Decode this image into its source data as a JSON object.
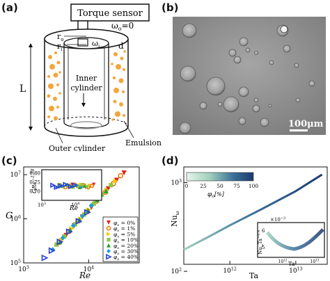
{
  "panels": {
    "a": {
      "label": "(a)",
      "torque_sensor": "Torque sensor",
      "omega_o": "ω",
      "omega_o_sub": "o",
      "omega_o_eq": "=0",
      "omega_i": "ω",
      "omega_i_sub": "i",
      "r_o": "r",
      "r_o_sub": "o",
      "r_i": "r",
      "r_i_sub": "i",
      "d": "d",
      "L": "L",
      "inner_cylinder": [
        "Inner",
        "cylinder"
      ],
      "outer_cylinder": "Outer cylinder",
      "emulsion": "Emulsion"
    },
    "b": {
      "label": "(b)",
      "scale_bar": "100μm"
    },
    "c": {
      "label": "(c)",
      "ylabel": "G",
      "xlabel": "Re",
      "inset_ylabel": "GRe",
      "inset_ylabel_exp": "−1.58",
      "inset_xlabel": "Re"
    },
    "d": {
      "label": "(d)",
      "ylabel": "Nu",
      "ylabel_sub": "ω",
      "xlabel": "Ta",
      "colorbar_label": "φ",
      "colorbar_label_sub": "o",
      "colorbar_label_unit": "[%]",
      "colorbar_ticks": [
        "0",
        "25",
        "50",
        "75",
        "100"
      ],
      "inset_ylabel": "Nu",
      "inset_ylabel_sub": "ω",
      "inset_ylabel_rest": "Ta",
      "inset_ylabel_exp": "−0.4",
      "inset_xlabel": "Ta",
      "inset_scale": "×10",
      "inset_scale_exp": "−3"
    }
  },
  "chart_data": [
    {
      "type": "scatter",
      "panel": "c",
      "xlabel": "Re",
      "ylabel": "G",
      "x_scale": "log",
      "y_scale": "log",
      "xlim": [
        1000,
        60000
      ],
      "ylim": [
        100000,
        15000000
      ],
      "x_ticks": [
        "10",
        "10"
      ],
      "x_ticks_exp": [
        "3",
        "4"
      ],
      "y_ticks": [
        "10",
        "10",
        "10"
      ],
      "y_ticks_exp": [
        "5",
        "6",
        "7"
      ],
      "legend_position": "bottom-right",
      "series": [
        {
          "name": "0%",
          "symbol": "▼",
          "color": "#e8201a",
          "x": [
            4500,
            6000,
            8000,
            11000,
            15000,
            20000,
            27000,
            35000
          ],
          "y": [
            420000,
            700000,
            1100000,
            1800000,
            3000000,
            4800000,
            7500000,
            11000000
          ]
        },
        {
          "name": "1%",
          "symbol": "○",
          "color": "#f07a10",
          "x": [
            3500,
            5000,
            7000,
            9500,
            13000,
            18000,
            24000,
            31000
          ],
          "y": [
            290000,
            520000,
            900000,
            1450000,
            2500000,
            4000000,
            6300000,
            9500000
          ]
        },
        {
          "name": "5%",
          "symbol": "▶",
          "color": "#f5c800",
          "x": [
            3800,
            5500,
            7500,
            10000,
            14000,
            19000,
            26000
          ],
          "y": [
            330000,
            600000,
            1000000,
            1600000,
            2800000,
            4500000,
            7200000
          ]
        },
        {
          "name": "10%",
          "symbol": "■",
          "color": "#8cc63f",
          "x": [
            3200,
            4200,
            6200,
            8500,
            12000,
            16000,
            22000
          ],
          "y": [
            260000,
            400000,
            750000,
            1250000,
            2200000,
            3500000,
            5800000
          ]
        },
        {
          "name": "20%",
          "symbol": "▲",
          "color": "#2ca02c",
          "x": [
            3600,
            5200,
            7200,
            9800,
            13500,
            18500
          ],
          "y": [
            300000,
            560000,
            950000,
            1550000,
            2700000,
            4300000
          ]
        },
        {
          "name": "30%",
          "symbol": "◆",
          "color": "#1f9fd0",
          "x": [
            2800,
            4000,
            5800,
            8000,
            11000,
            15000
          ],
          "y": [
            200000,
            370000,
            700000,
            1150000,
            2000000,
            3300000
          ]
        },
        {
          "name": "40%",
          "symbol": "▷",
          "color": "#2a3fd8",
          "x": [
            2100,
            2700,
            3600,
            5000,
            7000,
            9500
          ],
          "y": [
            130000,
            190000,
            300000,
            510000,
            880000,
            1400000
          ]
        }
      ],
      "inset": {
        "ylabel": "GRe^−1.58",
        "xlabel": "Re",
        "ylim": [
          0.65,
          0.82
        ],
        "y_ticks": [
          "0.80",
          "0.75",
          "0.70"
        ],
        "x_ticks": [
          "10",
          "10"
        ],
        "x_ticks_exp": [
          "3",
          "4"
        ],
        "approx_value": 0.73
      }
    },
    {
      "type": "line",
      "panel": "d",
      "xlabel": "Ta",
      "ylabel": "Nuω",
      "x_scale": "log",
      "y_scale": "log",
      "xlim": [
        200000000000,
        30000000000000
      ],
      "ylim": [
        120,
        1500
      ],
      "x_ticks": [
        "10",
        "10"
      ],
      "x_ticks_exp": [
        "12",
        "13"
      ],
      "y_ticks": [
        "10",
        "10"
      ],
      "y_ticks_exp": [
        "2",
        "3"
      ],
      "colorbar": {
        "label": "φo [%]",
        "range": [
          0,
          100
        ],
        "colors": [
          "#e6f4ec",
          "#9fd0bb",
          "#3b6f9a",
          "#1c3a6e"
        ]
      },
      "series": [
        {
          "name": "φo",
          "x": [
            200000000000,
            500000000000,
            1000000000000,
            3000000000000,
            10000000000000,
            25000000000000
          ],
          "y": [
            175,
            250,
            330,
            500,
            800,
            1230
          ]
        }
      ],
      "inset": {
        "ylabel": "Nuω Ta^−0.4",
        "xlabel": "Ta",
        "y_ticks": [
          "6",
          "5"
        ],
        "x_ticks": [
          "10",
          "10"
        ],
        "x_ticks_exp": [
          "12",
          "13"
        ],
        "scale_note": "×10^−3"
      }
    }
  ]
}
